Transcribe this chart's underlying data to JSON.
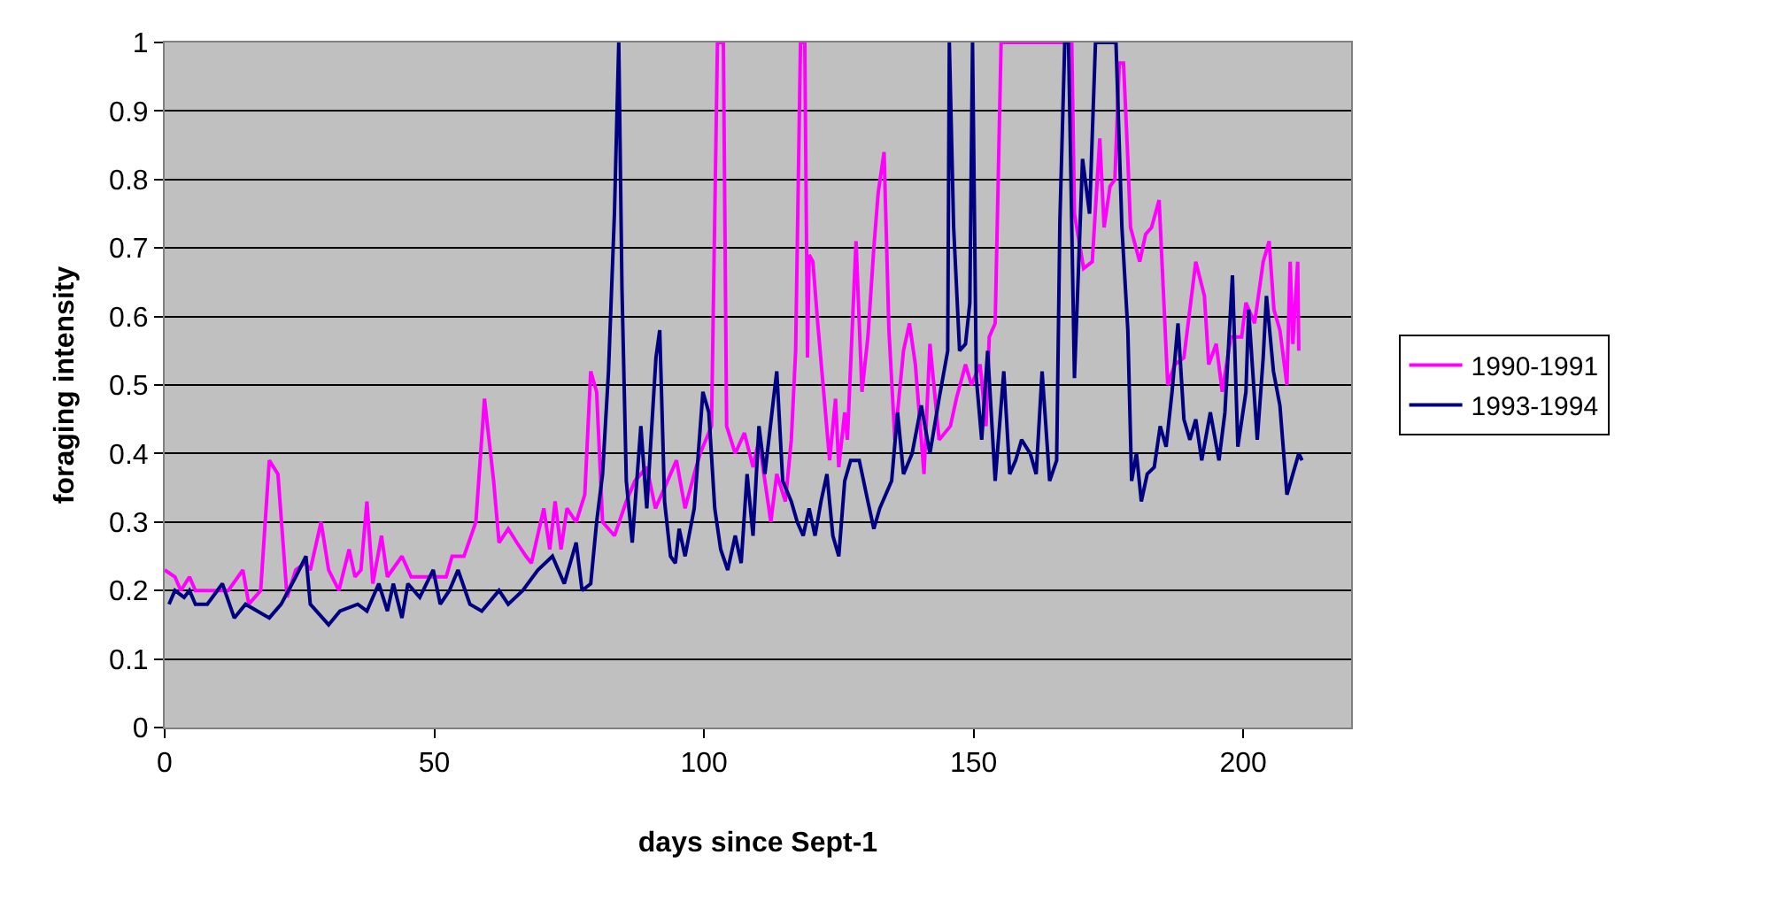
{
  "chart_data": {
    "type": "line",
    "xlabel": "days since Sept-1",
    "ylabel": "foraging intensity",
    "xlim": [
      0,
      220
    ],
    "xticks": [
      0,
      50,
      100,
      150,
      200
    ],
    "ylim": [
      0,
      1
    ],
    "yticks": [
      0,
      0.1,
      0.2,
      0.3,
      0.4,
      0.5,
      0.6,
      0.7,
      0.8,
      0.9,
      1
    ],
    "grid": "y",
    "legend": "right",
    "marker": "none",
    "line_style": "solid",
    "series": [
      {
        "name": "1990-1991",
        "color": "#ff00ff",
        "x": [
          0,
          1.9,
          3,
          4.6,
          5.7,
          7.4,
          9.6,
          11.8,
          14.5,
          15.6,
          17.8,
          19.4,
          21,
          22.7,
          24.3,
          26,
          27,
          29,
          30.4,
          32.3,
          34.2,
          35.3,
          36.4,
          37.5,
          38.6,
          40.2,
          41.3,
          44,
          45.7,
          49,
          52.2,
          53.3,
          55.5,
          57.7,
          59.3,
          61,
          62,
          63.7,
          65.3,
          67,
          68,
          70.3,
          71.4,
          72.4,
          73.5,
          74.6,
          76.3,
          77.9,
          79,
          80.1,
          81.2,
          83.4,
          85.6,
          87.2,
          89.4,
          91,
          92.7,
          94.9,
          96.5,
          98.2,
          99.3,
          101.4,
          102.5,
          103.6,
          104.2,
          105.8,
          107.5,
          109.1,
          110.2,
          112.4,
          113.5,
          115.1,
          116.2,
          117,
          117.9,
          118.7,
          119.2,
          119.5,
          120.2,
          121.1,
          122.2,
          123.3,
          124.4,
          125,
          126.1,
          126.6,
          128.2,
          129.3,
          130.4,
          131.5,
          132.3,
          133.4,
          134.3,
          135.4,
          137,
          138.1,
          139.2,
          140.8,
          141.9,
          143.6,
          145.7,
          146.8,
          148.5,
          149.6,
          151.2,
          152.3,
          152.9,
          154,
          155.1,
          168.2,
          168.7,
          170.4,
          172,
          173.4,
          174.2,
          175.3,
          176.2,
          177,
          177.8,
          178.6,
          179.1,
          180.8,
          181.9,
          183,
          184.4,
          186,
          187.3,
          189,
          190.1,
          191.2,
          192.8,
          193.6,
          195,
          196.1,
          197.7,
          199.7,
          200.5,
          202.1,
          203.7,
          204.8,
          205.7,
          206.8,
          208.1,
          208.7,
          209.2,
          210.1,
          210.3
        ],
        "values": [
          0.23,
          0.22,
          0.2,
          0.22,
          0.2,
          0.2,
          0.2,
          0.2,
          0.23,
          0.18,
          0.2,
          0.39,
          0.37,
          0.19,
          0.23,
          0.24,
          0.23,
          0.3,
          0.23,
          0.2,
          0.26,
          0.22,
          0.23,
          0.33,
          0.21,
          0.28,
          0.22,
          0.25,
          0.22,
          0.22,
          0.22,
          0.25,
          0.25,
          0.3,
          0.48,
          0.36,
          0.27,
          0.29,
          0.27,
          0.25,
          0.24,
          0.32,
          0.26,
          0.33,
          0.26,
          0.32,
          0.3,
          0.34,
          0.52,
          0.49,
          0.3,
          0.28,
          0.33,
          0.36,
          0.38,
          0.32,
          0.35,
          0.39,
          0.32,
          0.37,
          0.4,
          0.44,
          1,
          1,
          0.44,
          0.4,
          0.43,
          0.38,
          0.42,
          0.3,
          0.37,
          0.33,
          0.42,
          0.55,
          1,
          1,
          0.54,
          0.69,
          0.68,
          0.59,
          0.49,
          0.39,
          0.48,
          0.38,
          0.46,
          0.42,
          0.71,
          0.49,
          0.57,
          0.7,
          0.78,
          0.84,
          0.58,
          0.42,
          0.55,
          0.59,
          0.53,
          0.37,
          0.56,
          0.42,
          0.44,
          0.48,
          0.53,
          0.5,
          0.53,
          0.44,
          0.57,
          0.59,
          1,
          1,
          0.75,
          0.67,
          0.68,
          0.86,
          0.73,
          0.79,
          0.8,
          0.97,
          0.97,
          0.83,
          0.73,
          0.68,
          0.72,
          0.73,
          0.77,
          0.5,
          0.53,
          0.54,
          0.61,
          0.68,
          0.63,
          0.53,
          0.56,
          0.49,
          0.57,
          0.57,
          0.62,
          0.59,
          0.68,
          0.71,
          0.61,
          0.58,
          0.5,
          0.68,
          0.56,
          0.68,
          0.55
        ]
      },
      {
        "name": "1993-1994",
        "color": "#000080",
        "x": [
          0.8,
          1.9,
          3.6,
          4.6,
          5.7,
          7.9,
          10.7,
          12.9,
          15,
          17.2,
          19.4,
          21.6,
          24.3,
          26.2,
          27,
          30.4,
          32.5,
          35.8,
          37.5,
          39.7,
          41.3,
          42.4,
          44,
          45.1,
          47.3,
          49.8,
          51.1,
          52.8,
          54.4,
          56.6,
          58.8,
          62,
          63.7,
          66.4,
          69.2,
          71.9,
          74.1,
          76.3,
          77.4,
          79,
          80.1,
          81.2,
          82.3,
          83.4,
          84.2,
          84.8,
          85.6,
          86.7,
          88.3,
          89.4,
          91.1,
          91.8,
          92.7,
          93.8,
          94.7,
          95.4,
          96.5,
          98.2,
          99.8,
          100.9,
          102,
          103.1,
          104.4,
          105.8,
          106.9,
          108,
          109.1,
          110.2,
          111.3,
          112.9,
          113.5,
          114.6,
          116.2,
          117.3,
          118.4,
          119.5,
          120.6,
          121.7,
          122.8,
          123.9,
          125,
          126.1,
          127.2,
          128.8,
          130.4,
          131.5,
          132.6,
          134.8,
          135.9,
          137,
          138.6,
          140.3,
          141.9,
          143.6,
          145.2,
          145.5,
          146.3,
          147.4,
          148.5,
          149.3,
          149.8,
          150.5,
          151.5,
          152.6,
          154,
          155.6,
          156.7,
          157.8,
          158.9,
          160.5,
          161.6,
          162.7,
          164.1,
          165.4,
          166,
          166.9,
          167.6,
          168.7,
          170.2,
          171.5,
          172.6,
          176.4,
          177.5,
          178.6,
          179.3,
          180.2,
          181.1,
          182.2,
          183.5,
          184.6,
          185.7,
          186.8,
          187.9,
          189,
          190.1,
          191.2,
          192.3,
          193.9,
          195.5,
          196.6,
          198,
          199,
          200.5,
          201,
          202.6,
          203.7,
          204.3,
          205.6,
          206.8,
          208.1,
          209.2,
          210.3,
          210.9
        ],
        "values": [
          0.18,
          0.2,
          0.19,
          0.2,
          0.18,
          0.18,
          0.21,
          0.16,
          0.18,
          0.17,
          0.16,
          0.18,
          0.22,
          0.25,
          0.18,
          0.15,
          0.17,
          0.18,
          0.17,
          0.21,
          0.17,
          0.21,
          0.16,
          0.21,
          0.19,
          0.23,
          0.18,
          0.2,
          0.23,
          0.18,
          0.17,
          0.2,
          0.18,
          0.2,
          0.23,
          0.25,
          0.21,
          0.27,
          0.2,
          0.21,
          0.3,
          0.37,
          0.52,
          0.75,
          1,
          0.64,
          0.36,
          0.27,
          0.44,
          0.32,
          0.54,
          0.58,
          0.33,
          0.25,
          0.24,
          0.29,
          0.25,
          0.32,
          0.49,
          0.46,
          0.32,
          0.26,
          0.23,
          0.28,
          0.24,
          0.37,
          0.28,
          0.44,
          0.37,
          0.48,
          0.52,
          0.36,
          0.33,
          0.3,
          0.28,
          0.32,
          0.28,
          0.33,
          0.37,
          0.28,
          0.25,
          0.36,
          0.39,
          0.39,
          0.33,
          0.29,
          0.32,
          0.36,
          0.46,
          0.37,
          0.4,
          0.47,
          0.4,
          0.48,
          0.55,
          1,
          0.73,
          0.55,
          0.56,
          0.62,
          1,
          0.51,
          0.42,
          0.55,
          0.36,
          0.52,
          0.37,
          0.39,
          0.42,
          0.4,
          0.37,
          0.52,
          0.36,
          0.39,
          0.74,
          1,
          1,
          0.51,
          0.83,
          0.75,
          1,
          1,
          0.73,
          0.58,
          0.36,
          0.4,
          0.33,
          0.37,
          0.38,
          0.44,
          0.41,
          0.49,
          0.59,
          0.45,
          0.42,
          0.45,
          0.39,
          0.46,
          0.39,
          0.46,
          0.66,
          0.41,
          0.49,
          0.61,
          0.42,
          0.54,
          0.63,
          0.52,
          0.47,
          0.34,
          0.37,
          0.4,
          0.39
        ]
      }
    ]
  }
}
